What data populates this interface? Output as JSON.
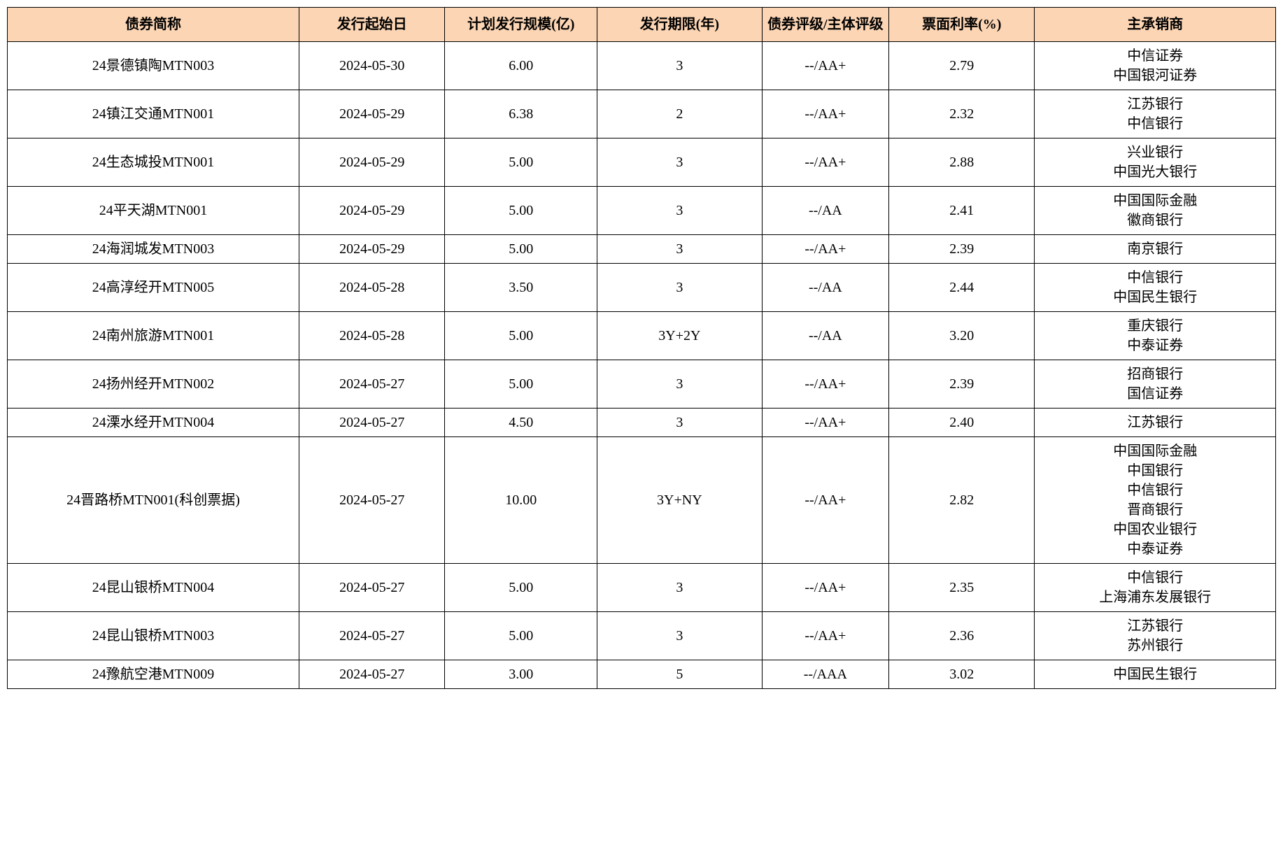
{
  "table": {
    "header_bg": "#fcd5b4",
    "border_color": "#000000",
    "columns": [
      {
        "key": "name",
        "label": "债券简称"
      },
      {
        "key": "date",
        "label": "发行起始日"
      },
      {
        "key": "size",
        "label": "计划发行规模(亿)"
      },
      {
        "key": "term",
        "label": "发行期限(年)"
      },
      {
        "key": "rating",
        "label": "债券评级/主体评级"
      },
      {
        "key": "rate",
        "label": "票面利率(%)"
      },
      {
        "key": "underwriter",
        "label": "主承销商"
      }
    ],
    "rows": [
      {
        "name": "24景德镇陶MTN003",
        "date": "2024-05-30",
        "size": "6.00",
        "term": "3",
        "rating": "--/AA+",
        "rate": "2.79",
        "underwriters": [
          "中信证券",
          "中国银河证券"
        ]
      },
      {
        "name": "24镇江交通MTN001",
        "date": "2024-05-29",
        "size": "6.38",
        "term": "2",
        "rating": "--/AA+",
        "rate": "2.32",
        "underwriters": [
          "江苏银行",
          "中信银行"
        ]
      },
      {
        "name": "24生态城投MTN001",
        "date": "2024-05-29",
        "size": "5.00",
        "term": "3",
        "rating": "--/AA+",
        "rate": "2.88",
        "underwriters": [
          "兴业银行",
          "中国光大银行"
        ]
      },
      {
        "name": "24平天湖MTN001",
        "date": "2024-05-29",
        "size": "5.00",
        "term": "3",
        "rating": "--/AA",
        "rate": "2.41",
        "underwriters": [
          "中国国际金融",
          "徽商银行"
        ]
      },
      {
        "name": "24海润城发MTN003",
        "date": "2024-05-29",
        "size": "5.00",
        "term": "3",
        "rating": "--/AA+",
        "rate": "2.39",
        "underwriters": [
          "南京银行"
        ]
      },
      {
        "name": "24高淳经开MTN005",
        "date": "2024-05-28",
        "size": "3.50",
        "term": "3",
        "rating": "--/AA",
        "rate": "2.44",
        "underwriters": [
          "中信银行",
          "中国民生银行"
        ]
      },
      {
        "name": "24南州旅游MTN001",
        "date": "2024-05-28",
        "size": "5.00",
        "term": "3Y+2Y",
        "rating": "--/AA",
        "rate": "3.20",
        "underwriters": [
          "重庆银行",
          "中泰证券"
        ]
      },
      {
        "name": "24扬州经开MTN002",
        "date": "2024-05-27",
        "size": "5.00",
        "term": "3",
        "rating": "--/AA+",
        "rate": "2.39",
        "underwriters": [
          "招商银行",
          "国信证券"
        ]
      },
      {
        "name": "24溧水经开MTN004",
        "date": "2024-05-27",
        "size": "4.50",
        "term": "3",
        "rating": "--/AA+",
        "rate": "2.40",
        "underwriters": [
          "江苏银行"
        ]
      },
      {
        "name": "24晋路桥MTN001(科创票据)",
        "date": "2024-05-27",
        "size": "10.00",
        "term": "3Y+NY",
        "rating": "--/AA+",
        "rate": "2.82",
        "underwriters": [
          "中国国际金融",
          "中国银行",
          "中信银行",
          "晋商银行",
          "中国农业银行",
          "中泰证券"
        ]
      },
      {
        "name": "24昆山银桥MTN004",
        "date": "2024-05-27",
        "size": "5.00",
        "term": "3",
        "rating": "--/AA+",
        "rate": "2.35",
        "underwriters": [
          "中信银行",
          "上海浦东发展银行"
        ]
      },
      {
        "name": "24昆山银桥MTN003",
        "date": "2024-05-27",
        "size": "5.00",
        "term": "3",
        "rating": "--/AA+",
        "rate": "2.36",
        "underwriters": [
          "江苏银行",
          "苏州银行"
        ]
      },
      {
        "name": "24豫航空港MTN009",
        "date": "2024-05-27",
        "size": "3.00",
        "term": "5",
        "rating": "--/AAA",
        "rate": "3.02",
        "underwriters": [
          "中国民生银行"
        ]
      }
    ]
  }
}
